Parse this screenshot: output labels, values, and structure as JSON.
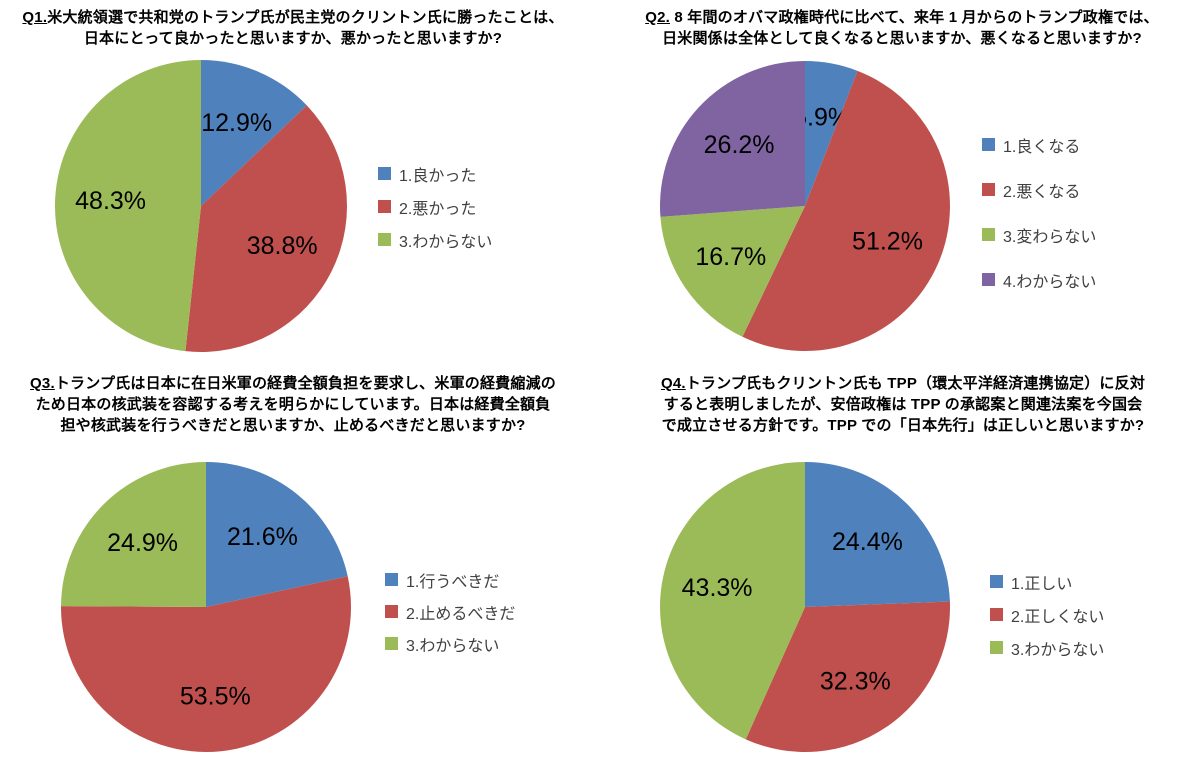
{
  "page": {
    "background": "#ffffff"
  },
  "palette": {
    "blue": "#4F81BD",
    "red": "#C0504D",
    "green": "#9BBB59",
    "purple": "#8064A2"
  },
  "panels": [
    {
      "title": {
        "prefix": "Q1.",
        "line1": "米大統領選で共和党のトランプ氏が民主党のクリントン氏に勝ったことは、",
        "line2": "日本にとって良かったと思いますか、悪かったと思いますか?"
      }
    },
    {
      "title": {
        "prefix": "Q2.",
        "line1": " 8 年間のオバマ政権時代に比べて、来年 1 月からのトランプ政権では、",
        "line2": "日米関係は全体として良くなると思いますか、悪くなると思いますか?"
      }
    },
    {
      "title": {
        "prefix": "Q3.",
        "line1": "トランプ氏は日本に在日米軍の経費全額負担を要求し、米軍の経費縮減の",
        "line2": "ため日本の核武装を容認する考えを明らかにしています。日本は経費全額負",
        "line3": "担や核武装を行うべきだと思いますか、止めるべきだと思いますか?"
      }
    },
    {
      "title": {
        "prefix": "Q4.",
        "line1": "トランプ氏もクリントン氏も TPP（環太平洋経済連携協定）に反対",
        "line2": "すると表明しましたが、安倍政権は TPP の承認案と関連法案を今国会",
        "line3": "で成立させる方針です。TPP での「日本先行」は正しいと思いますか?"
      }
    }
  ],
  "chart_data": [
    {
      "type": "pie",
      "question": "Q1",
      "labels": [
        "1.良かった",
        "2.悪かった",
        "3.わからない"
      ],
      "values": [
        12.9,
        38.8,
        48.3
      ],
      "data_labels": [
        "12.9%",
        "38.8%",
        "48.3%"
      ],
      "colors": [
        "#4F81BD",
        "#C0504D",
        "#9BBB59"
      ],
      "start_angle_deg": 0,
      "direction": "clockwise",
      "legend_position": "right"
    },
    {
      "type": "pie",
      "question": "Q2",
      "labels": [
        "1.良くなる",
        "2.悪くなる",
        "3.変わらない",
        "4.わからない"
      ],
      "values": [
        5.9,
        51.2,
        16.7,
        26.2
      ],
      "data_labels": [
        "5.9%",
        "51.2%",
        "16.7%",
        "26.2%"
      ],
      "colors": [
        "#4F81BD",
        "#C0504D",
        "#9BBB59",
        "#8064A2"
      ],
      "start_angle_deg": 0,
      "direction": "clockwise",
      "legend_position": "right"
    },
    {
      "type": "pie",
      "question": "Q3",
      "labels": [
        "1.行うべきだ",
        "2.止めるべきだ",
        "3.わからない"
      ],
      "values": [
        21.6,
        53.5,
        24.9
      ],
      "data_labels": [
        "21.6%",
        "53.5%",
        "24.9%"
      ],
      "colors": [
        "#4F81BD",
        "#C0504D",
        "#9BBB59"
      ],
      "start_angle_deg": 0,
      "direction": "clockwise",
      "legend_position": "right"
    },
    {
      "type": "pie",
      "question": "Q4",
      "labels": [
        "1.正しい",
        "2.正しくない",
        "3.わからない"
      ],
      "values": [
        24.4,
        32.3,
        43.3
      ],
      "data_labels": [
        "24.4%",
        "32.3%",
        "43.3%"
      ],
      "colors": [
        "#4F81BD",
        "#C0504D",
        "#9BBB59"
      ],
      "start_angle_deg": 0,
      "direction": "clockwise",
      "legend_position": "right"
    }
  ]
}
